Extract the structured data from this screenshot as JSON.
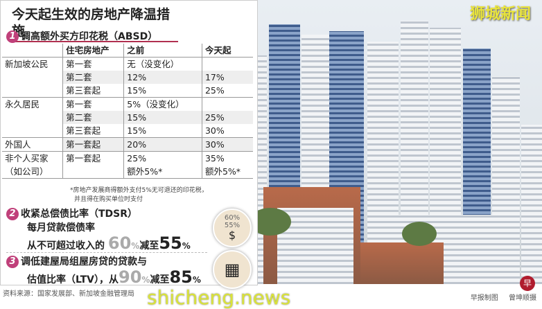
{
  "brand_logo": "狮城新闻",
  "title": "今天起生效的房地产降温措施",
  "section1": {
    "number": "1",
    "heading": "调高额外买方印花税（ABSD）",
    "headers": [
      "",
      "住宅房地产",
      "之前",
      "今天起"
    ],
    "rows": [
      [
        "新加坡公民",
        "第一套",
        "无（没变化）",
        ""
      ],
      [
        "",
        "第二套",
        "12%",
        "17%"
      ],
      [
        "",
        "第三套起",
        "15%",
        "25%"
      ],
      [
        "永久居民",
        "第一套",
        "5%（没变化）",
        ""
      ],
      [
        "",
        "第二套",
        "15%",
        "25%"
      ],
      [
        "",
        "第三套起",
        "15%",
        "30%"
      ],
      [
        "外国人",
        "第一套起",
        "20%",
        "30%"
      ],
      [
        "非个人买家",
        "第一套起",
        "25%",
        "35%"
      ],
      [
        "（如公司）",
        "",
        "额外5%*",
        "额外5%*"
      ]
    ],
    "footnote_1": "*房地产发展商得额外支付5%无可退还的印花税，",
    "footnote_2": "并且得在购买单位时支付"
  },
  "section2": {
    "number": "2",
    "heading": "收紧总偿债比率（TDSR）",
    "line2": "每月贷款偿债率",
    "line3_prefix": "从不可超过收入的",
    "from_value": "60",
    "pct": "%",
    "mid": "减至",
    "to_value": "55",
    "icon_text_1": "60%",
    "icon_text_2": "55%"
  },
  "section3": {
    "number": "3",
    "heading": "调低建屋局组屋房贷的贷款与",
    "line2_prefix": "估值比率（LTV），从",
    "from_value": "90",
    "pct": "%",
    "mid": "减至",
    "to_value": "85"
  },
  "source": "资料来源：国家发展部、新加坡金融管理局",
  "watermark": "shicheng.news",
  "credits": "早报制图 曾坤顺摄",
  "zaobao_logo": "早"
}
